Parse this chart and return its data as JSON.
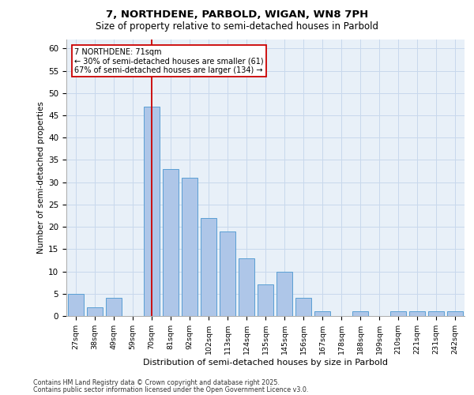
{
  "title1": "7, NORTHDENE, PARBOLD, WIGAN, WN8 7PH",
  "title2": "Size of property relative to semi-detached houses in Parbold",
  "xlabel": "Distribution of semi-detached houses by size in Parbold",
  "ylabel": "Number of semi-detached properties",
  "categories": [
    "27sqm",
    "38sqm",
    "49sqm",
    "59sqm",
    "70sqm",
    "81sqm",
    "92sqm",
    "102sqm",
    "113sqm",
    "124sqm",
    "135sqm",
    "145sqm",
    "156sqm",
    "167sqm",
    "178sqm",
    "188sqm",
    "199sqm",
    "210sqm",
    "221sqm",
    "231sqm",
    "242sqm"
  ],
  "values": [
    5,
    2,
    4,
    0,
    47,
    33,
    31,
    22,
    19,
    13,
    7,
    10,
    4,
    1,
    0,
    1,
    0,
    1,
    1,
    1,
    1
  ],
  "bar_color": "#aec6e8",
  "bar_edge_color": "#5a9fd4",
  "annotation_text": "7 NORTHDENE: 71sqm\n← 30% of semi-detached houses are smaller (61)\n67% of semi-detached houses are larger (134) →",
  "annotation_box_color": "#ffffff",
  "annotation_box_edge": "#cc0000",
  "vline_x_index": 4,
  "vline_color": "#cc0000",
  "ylim": [
    0,
    62
  ],
  "yticks": [
    0,
    5,
    10,
    15,
    20,
    25,
    30,
    35,
    40,
    45,
    50,
    55,
    60
  ],
  "grid_color": "#c8d8ec",
  "bg_color": "#e8f0f8",
  "footer1": "Contains HM Land Registry data © Crown copyright and database right 2025.",
  "footer2": "Contains public sector information licensed under the Open Government Licence v3.0."
}
